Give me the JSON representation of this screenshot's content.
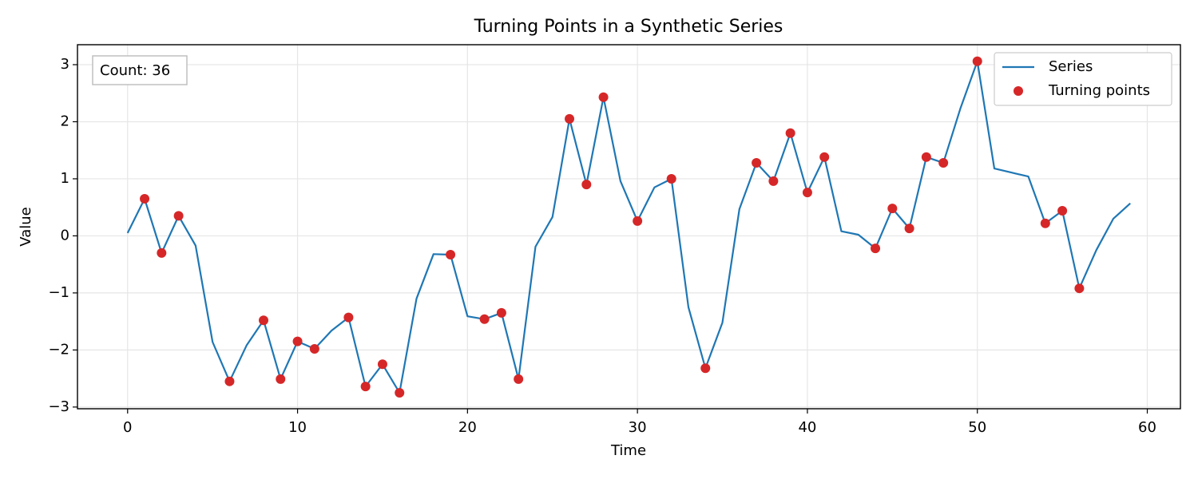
{
  "chart_data": {
    "type": "line",
    "title": "Turning Points in a Synthetic Series",
    "x_label": "Time",
    "y_label": "Value",
    "annotation": "Count: 36",
    "xlim": [
      -2.95,
      61.95
    ],
    "ylim": [
      -3.03,
      3.35
    ],
    "xticks": [
      0,
      10,
      20,
      30,
      40,
      50,
      60
    ],
    "yticks": [
      {
        "value": -3,
        "label": "−3"
      },
      {
        "value": -2,
        "label": "−2"
      },
      {
        "value": -1,
        "label": "−1"
      },
      0,
      1,
      2,
      3
    ],
    "grid": true,
    "legend": "upper right",
    "series": [
      {
        "name": "Series",
        "type": "line",
        "color": "#1f77b4",
        "x": [
          0,
          1,
          2,
          3,
          4,
          5,
          6,
          7,
          8,
          9,
          10,
          11,
          12,
          13,
          14,
          15,
          16,
          17,
          18,
          19,
          20,
          21,
          22,
          23,
          24,
          25,
          26,
          27,
          28,
          29,
          30,
          31,
          32,
          33,
          34,
          35,
          36,
          37,
          38,
          39,
          40,
          41,
          42,
          43,
          44,
          45,
          46,
          47,
          48,
          49,
          50,
          51,
          52,
          53,
          54,
          55,
          56,
          57,
          58,
          59
        ],
        "values": [
          0.05,
          0.65,
          -0.3,
          0.35,
          -0.17,
          -1.86,
          -2.55,
          -1.92,
          -1.48,
          -2.51,
          -1.85,
          -1.98,
          -1.66,
          -1.43,
          -2.64,
          -2.25,
          -2.75,
          -1.1,
          -0.32,
          -0.33,
          -1.41,
          -1.46,
          -1.35,
          -2.51,
          -0.19,
          0.33,
          2.05,
          0.9,
          2.43,
          0.96,
          0.26,
          0.85,
          1.0,
          -1.25,
          -2.32,
          -1.52,
          0.47,
          1.28,
          0.96,
          1.8,
          0.76,
          1.38,
          0.08,
          0.02,
          -0.22,
          0.48,
          0.13,
          1.38,
          1.28,
          2.23,
          3.06,
          1.18,
          1.11,
          1.04,
          0.22,
          0.44,
          -0.92,
          -0.25,
          0.3,
          0.57
        ]
      },
      {
        "name": "Turning points",
        "type": "scatter",
        "color": "#d62728",
        "x": [
          1,
          2,
          3,
          6,
          8,
          9,
          10,
          11,
          13,
          14,
          15,
          16,
          19,
          21,
          22,
          23,
          26,
          27,
          28,
          30,
          32,
          34,
          37,
          38,
          39,
          40,
          41,
          44,
          45,
          46,
          47,
          48,
          50,
          54,
          55,
          56
        ],
        "values": [
          0.65,
          -0.3,
          0.35,
          -2.55,
          -1.48,
          -2.51,
          -1.85,
          -1.98,
          -1.43,
          -2.64,
          -2.25,
          -2.75,
          -0.33,
          -1.46,
          -1.35,
          -2.51,
          2.05,
          0.9,
          2.43,
          0.26,
          1.0,
          -2.32,
          1.28,
          0.96,
          1.8,
          0.76,
          1.38,
          -0.22,
          0.48,
          0.13,
          1.38,
          1.28,
          3.06,
          0.22,
          0.44,
          -0.92
        ]
      }
    ]
  }
}
